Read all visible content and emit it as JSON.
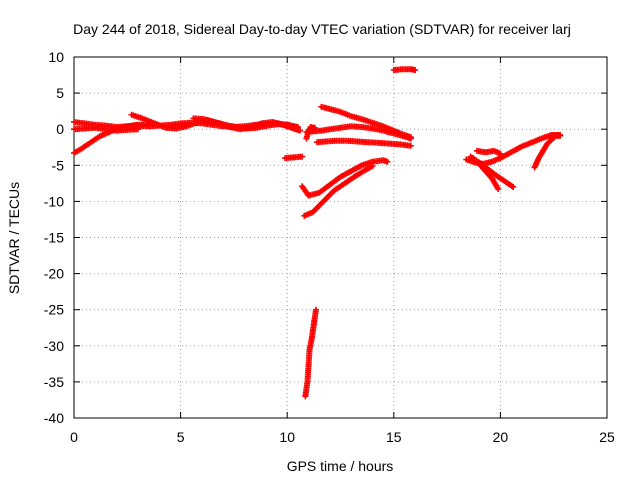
{
  "chart_data": {
    "type": "scatter",
    "title": "Day 244 of 2018, Sidereal Day-to-day VTEC variation (SDTVAR) for receiver larj",
    "xlabel": "GPS time / hours",
    "ylabel": "SDTVAR / TECUs",
    "xlim": [
      0,
      25
    ],
    "ylim": [
      -40,
      10
    ],
    "x_ticks": [
      0,
      5,
      10,
      15,
      20,
      25
    ],
    "y_ticks": [
      -40,
      -35,
      -30,
      -25,
      -20,
      -15,
      -10,
      -5,
      0,
      5,
      10
    ],
    "grid": true,
    "marker": "+",
    "color": "#ff0000",
    "series": [
      {
        "x": [
          0.0,
          0.5,
          1.0,
          1.5,
          2.0,
          2.5,
          3.0,
          3.5,
          4.0,
          4.5,
          5.0,
          5.5,
          6.0,
          6.5,
          7.0,
          7.5,
          8.0,
          8.5,
          9.0,
          9.5,
          10.0,
          10.5
        ],
        "y": [
          1.0,
          0.8,
          0.6,
          0.5,
          0.3,
          0.4,
          0.5,
          0.4,
          0.5,
          0.6,
          0.8,
          0.9,
          0.8,
          0.6,
          0.4,
          0.3,
          0.4,
          0.6,
          0.7,
          0.8,
          0.6,
          0.3
        ]
      },
      {
        "x": [
          0.0,
          0.3,
          0.6,
          0.9,
          1.2,
          1.5,
          1.8,
          2.1,
          2.4,
          2.7,
          3.0,
          3.5
        ],
        "y": [
          -3.3,
          -2.8,
          -2.2,
          -1.6,
          -1.0,
          -0.6,
          -0.2,
          0.1,
          0.3,
          0.5,
          0.6,
          0.6
        ]
      },
      {
        "x": [
          0.0,
          0.5,
          1.0,
          1.5,
          2.0,
          2.5,
          3.0
        ],
        "y": [
          0.0,
          0.1,
          0.2,
          0.0,
          -0.2,
          -0.1,
          0.0
        ]
      },
      {
        "x": [
          2.7,
          3.2,
          3.8,
          4.3,
          4.8,
          5.3,
          5.8,
          6.3,
          6.8,
          7.3,
          7.8,
          8.3,
          8.8,
          9.3
        ],
        "y": [
          2.0,
          1.5,
          0.8,
          0.2,
          0.1,
          0.4,
          1.0,
          1.2,
          0.8,
          0.3,
          0.0,
          0.3,
          0.8,
          1.0
        ]
      },
      {
        "x": [
          5.6,
          6.1,
          6.6,
          7.1,
          7.6,
          8.1,
          8.6,
          9.1,
          9.6,
          10.1,
          10.5
        ],
        "y": [
          1.5,
          1.4,
          1.0,
          0.6,
          0.3,
          0.1,
          0.2,
          0.5,
          0.7,
          0.6,
          0.2
        ]
      },
      {
        "x": [
          9.3,
          9.6,
          9.9,
          10.2,
          10.4,
          10.6
        ],
        "y": [
          1.0,
          0.8,
          0.5,
          0.2,
          0.0,
          -0.2
        ]
      },
      {
        "x": [
          10.9,
          11.2,
          11.6,
          12.0,
          12.5,
          13.0,
          13.5,
          14.0,
          14.5,
          15.0,
          15.5,
          15.8
        ],
        "y": [
          -0.4,
          -0.3,
          -0.2,
          0.0,
          0.2,
          0.4,
          0.3,
          0.1,
          -0.2,
          -0.6,
          -1.0,
          -1.3
        ]
      },
      {
        "x": [
          11.6,
          12.0,
          12.5,
          13.0,
          13.5,
          14.0,
          14.5,
          15.0,
          15.5,
          15.8
        ],
        "y": [
          3.1,
          2.8,
          2.4,
          1.8,
          1.4,
          0.9,
          0.4,
          -0.2,
          -0.8,
          -1.1
        ]
      },
      {
        "x": [
          11.4,
          11.8,
          12.3,
          12.8,
          13.3,
          13.8,
          14.3,
          14.8,
          15.3,
          15.8
        ],
        "y": [
          -1.8,
          -1.7,
          -1.6,
          -1.6,
          -1.7,
          -1.8,
          -1.9,
          -2.0,
          -2.1,
          -2.3
        ]
      },
      {
        "x": [
          10.7,
          11.0,
          11.5,
          12.0,
          12.5,
          13.0,
          13.5,
          14.0,
          14.5,
          14.7
        ],
        "y": [
          -7.9,
          -9.2,
          -8.8,
          -7.7,
          -6.6,
          -5.8,
          -5.0,
          -4.5,
          -4.3,
          -4.5
        ]
      },
      {
        "x": [
          10.8,
          11.2,
          11.7,
          12.2,
          12.7,
          13.2,
          13.7,
          14.0
        ],
        "y": [
          -12.0,
          -11.5,
          -10.0,
          -8.5,
          -7.5,
          -6.5,
          -5.6,
          -5.1
        ]
      },
      {
        "x": [
          9.9,
          10.3,
          10.7
        ],
        "y": [
          -4.0,
          -3.9,
          -3.8
        ]
      },
      {
        "x": [
          10.9,
          11.0,
          11.1,
          11.2,
          11.3
        ],
        "y": [
          -1.3,
          -0.3,
          0.3,
          0.2,
          0.2
        ]
      },
      {
        "x": [
          15.0,
          15.4,
          15.8,
          16.0
        ],
        "y": [
          8.2,
          8.3,
          8.3,
          8.2
        ]
      },
      {
        "x": [
          10.85,
          10.95,
          11.05,
          11.15,
          11.25,
          11.35
        ],
        "y": [
          -37.0,
          -35.0,
          -30.5,
          -29.0,
          -27.0,
          -25.0
        ]
      },
      {
        "x": [
          18.4,
          18.8,
          19.2,
          19.6,
          20.0,
          20.5,
          21.0,
          21.5,
          22.0,
          22.4,
          22.8
        ],
        "y": [
          -4.2,
          -4.6,
          -4.8,
          -4.5,
          -4.0,
          -3.2,
          -2.4,
          -1.8,
          -1.2,
          -0.8,
          -0.8
        ]
      },
      {
        "x": [
          18.6,
          19.0,
          19.4,
          19.8,
          20.2,
          20.6
        ],
        "y": [
          -3.8,
          -4.6,
          -5.5,
          -6.4,
          -7.2,
          -8.0
        ]
      },
      {
        "x": [
          18.7,
          19.0,
          19.3,
          19.6,
          19.9
        ],
        "y": [
          -4.0,
          -4.8,
          -5.8,
          -6.8,
          -8.3
        ]
      },
      {
        "x": [
          18.9,
          19.3,
          19.7,
          20.0
        ],
        "y": [
          -3.0,
          -3.2,
          -3.0,
          -3.4
        ]
      },
      {
        "x": [
          21.6,
          21.8,
          22.0,
          22.2,
          22.5
        ],
        "y": [
          -5.3,
          -4.0,
          -3.0,
          -2.0,
          -1.2
        ]
      },
      {
        "x": [
          22.3,
          22.6,
          22.8
        ],
        "y": [
          -1.0,
          -0.9,
          -0.9
        ]
      }
    ]
  }
}
